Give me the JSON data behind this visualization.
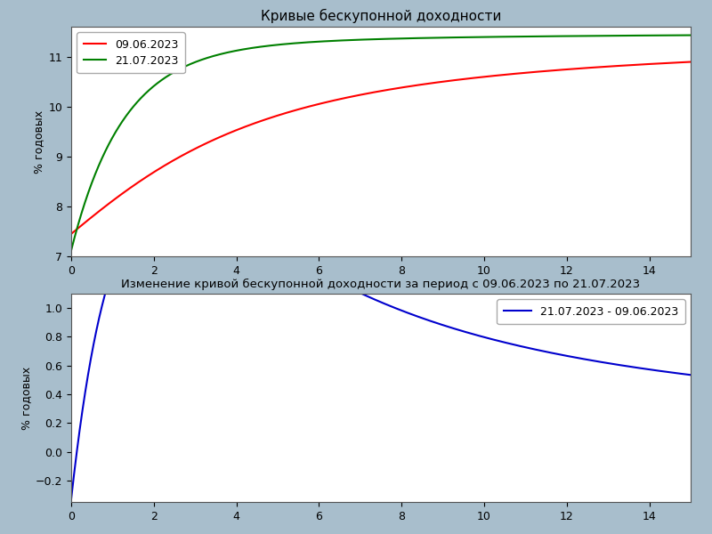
{
  "title1": "Кривые бескупонной доходности",
  "title2": "Изменение кривой бескупонной доходности за период с 09.06.2023 по 21.07.2023",
  "ylabel": "% годовых",
  "legend1_label1": "09.06.2023",
  "legend1_label2": "21.07.2023",
  "legend2_label": "21.07.2023 - 09.06.2023",
  "color_red": "#ff0000",
  "color_green": "#008000",
  "color_blue": "#0000cd",
  "bg_color": "#a8becc",
  "plot_bg": "#ffffff",
  "x_start": 0.0,
  "x_end": 15.0,
  "curve1_params": {
    "beta0": 11.5,
    "beta1": -4.05,
    "beta2": -2.0,
    "tau": 1.5
  },
  "curve2_params": {
    "beta0": 11.5,
    "beta1": -4.38,
    "beta2": 3.5,
    "tau": 1.2
  },
  "xlim": [
    0,
    15
  ],
  "ylim1": [
    7.0,
    11.6
  ],
  "ylim2": [
    -0.35,
    1.1
  ],
  "yticks1": [
    7,
    8,
    9,
    10,
    11
  ],
  "yticks2": [
    -0.2,
    0.0,
    0.2,
    0.4,
    0.6,
    0.8,
    1.0
  ],
  "xticks": [
    0,
    2,
    4,
    6,
    8,
    10,
    12,
    14
  ]
}
